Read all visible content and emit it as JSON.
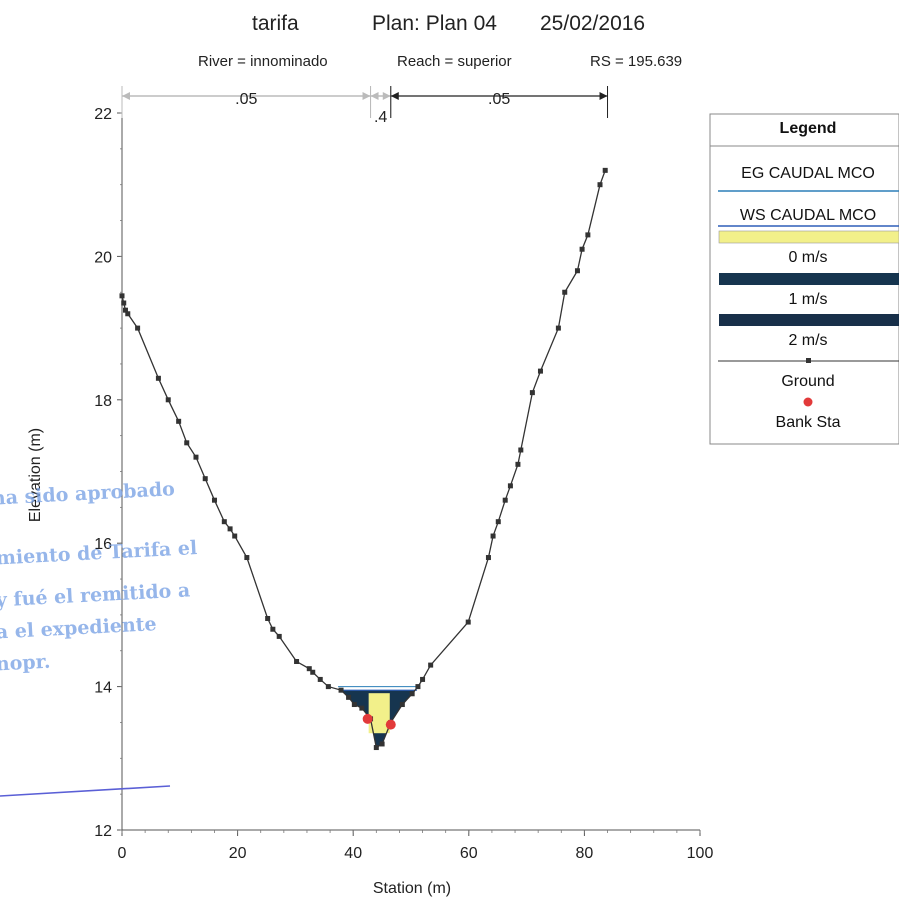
{
  "chart_data": {
    "type": "line",
    "title": {
      "name": "tarifa",
      "plan": "Plan: Plan 04",
      "date": "25/02/2016"
    },
    "subtitle": {
      "river": "River = innominado",
      "reach": "Reach = superior",
      "rs": "RS = 195.639"
    },
    "xlabel": "Station (m)",
    "ylabel": "Elevation (m)",
    "xlim": [
      0,
      100
    ],
    "ylim": [
      12,
      22.5
    ],
    "xticks": [
      "0",
      "20",
      "40",
      "60",
      "80",
      "100"
    ],
    "yticks": [
      "12",
      "14",
      "16",
      "18",
      "20",
      "22"
    ],
    "manning_n": [
      {
        "label": ".05",
        "x_start": 0,
        "x_end": 43
      },
      {
        "label": ".4",
        "x_start": 43,
        "x_end": 46.5
      },
      {
        "label": ".05",
        "x_start": 46.5,
        "x_end": 84
      }
    ],
    "ground": {
      "x": [
        0,
        0.3,
        0.6,
        1,
        2.7,
        6.3,
        8,
        9.8,
        11.2,
        12.8,
        14.4,
        16,
        17.7,
        18.7,
        19.5,
        21.6,
        25.2,
        26.1,
        27.2,
        30.2,
        32.4,
        33,
        34.3,
        35.7,
        37.9,
        39.2,
        40.2,
        41.5,
        43,
        44,
        45,
        46.5,
        48.5,
        50.2,
        51.2,
        52,
        53.4,
        59.9,
        63.4,
        64.2,
        65.1,
        66.3,
        67.2,
        68.5,
        69,
        71,
        72.4,
        75.5,
        76.6,
        78.8,
        79.6,
        80.6,
        82.7,
        83.6
      ],
      "y": [
        19.45,
        19.35,
        19.25,
        19.2,
        19.0,
        18.3,
        18.0,
        17.7,
        17.4,
        17.2,
        16.9,
        16.6,
        16.3,
        16.2,
        16.1,
        15.8,
        14.95,
        14.8,
        14.7,
        14.35,
        14.25,
        14.2,
        14.1,
        14.0,
        13.95,
        13.85,
        13.75,
        13.7,
        13.55,
        13.15,
        13.2,
        13.5,
        13.75,
        13.9,
        14.0,
        14.1,
        14.3,
        14.9,
        15.8,
        16.1,
        16.3,
        16.6,
        16.8,
        17.1,
        17.3,
        18.1,
        18.4,
        19.0,
        19.5,
        19.8,
        20.1,
        20.3,
        21.0,
        21.2
      ]
    },
    "bank_stations": [
      {
        "x": 42.5,
        "y": 13.55
      },
      {
        "x": 46.5,
        "y": 13.47
      }
    ],
    "water_surface": 13.95,
    "energy_grade": 14.0,
    "legend": {
      "title": "Legend",
      "position": "right",
      "items": [
        {
          "label": "EG CAUDAL MCO",
          "kind": "line",
          "color": "#2b7fb8"
        },
        {
          "label": "WS CAUDAL MCO",
          "kind": "line",
          "color": "#2f5fb8"
        },
        {
          "label": "0 m/s",
          "kind": "fill",
          "color": "#f2f08a"
        },
        {
          "label": "1 m/s",
          "kind": "fill",
          "color": "#16354f"
        },
        {
          "label": "2 m/s",
          "kind": "fill",
          "color": "#18304a"
        },
        {
          "label": "Ground",
          "kind": "ground",
          "color": "#333333"
        },
        {
          "label": "Bank Sta",
          "kind": "dot",
          "color": "#e23a3a"
        }
      ]
    },
    "grid": false,
    "colors": {
      "slow_flow": "#f2f08a",
      "fast_flow": "#16354f",
      "ground": "#333333",
      "bank": "#e23a3a",
      "ws_line": "#2f5fb8",
      "eg_line": "#2b7fb8"
    }
  },
  "stamp": {
    "lines": [
      "ha sido aprobado",
      "miento de Tarifa el",
      "y fué el remitido a",
      "a el expediente",
      "nopr."
    ]
  }
}
